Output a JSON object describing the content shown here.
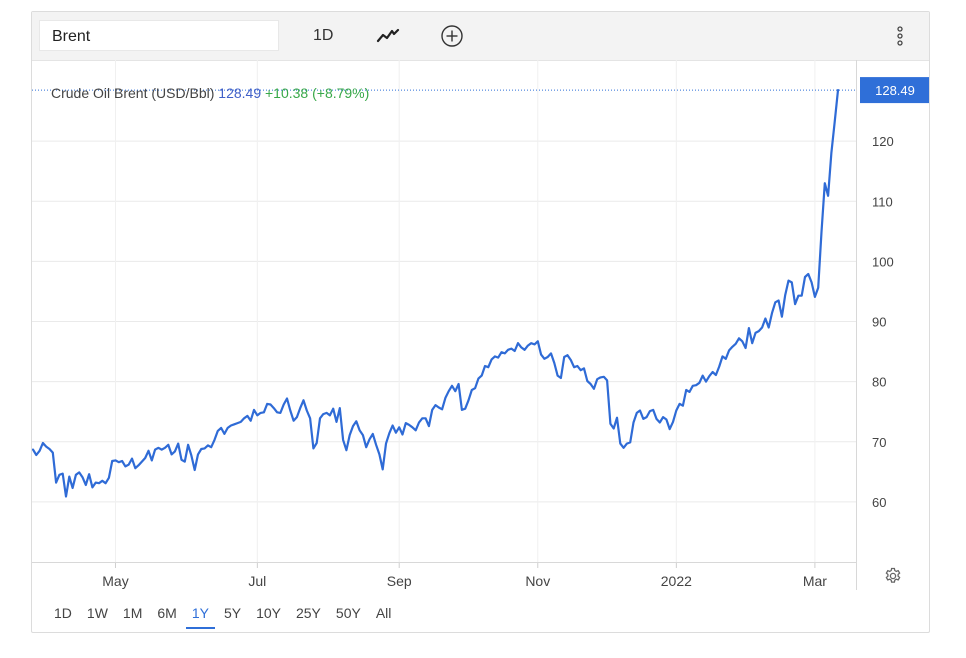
{
  "toolbar": {
    "search_value": "Brent",
    "interval_label": "1D",
    "chart_type_icon": "line-chart-icon",
    "add_icon": "plus-circle-icon",
    "more_icon": "more-vertical-icon"
  },
  "legend": {
    "name": "Crude Oil Brent (USD/Bbl)",
    "last_value": "128.49",
    "change": "+10.38 (+8.79%)"
  },
  "ranges": [
    {
      "label": "1D",
      "active": false
    },
    {
      "label": "1W",
      "active": false
    },
    {
      "label": "1M",
      "active": false
    },
    {
      "label": "6M",
      "active": false
    },
    {
      "label": "1Y",
      "active": true
    },
    {
      "label": "5Y",
      "active": false
    },
    {
      "label": "10Y",
      "active": false
    },
    {
      "label": "25Y",
      "active": false
    },
    {
      "label": "50Y",
      "active": false
    },
    {
      "label": "All",
      "active": false
    }
  ],
  "colors": {
    "line": "#2f6bd6",
    "accent": "#2f6fd8",
    "change_positive": "#38a849",
    "grid": "#eaeaea"
  },
  "chart_data": {
    "type": "line",
    "title": "Crude Oil Brent (USD/Bbl)",
    "xlabel": "",
    "ylabel": "USD/Bbl",
    "ylim": [
      50,
      131
    ],
    "yticks": [
      60,
      70,
      80,
      90,
      100,
      110,
      120
    ],
    "x_tick_labels": [
      {
        "label": "May",
        "index": 25
      },
      {
        "label": "Jul",
        "index": 68
      },
      {
        "label": "Sep",
        "index": 111
      },
      {
        "label": "Nov",
        "index": 153
      },
      {
        "label": "2022",
        "index": 195
      },
      {
        "label": "Mar",
        "index": 237
      }
    ],
    "last_price_label": "128.49",
    "last_price": 128.49,
    "series": [
      {
        "name": "Crude Oil Brent",
        "values": [
          68.7,
          67.8,
          68.5,
          69.8,
          69.2,
          68.8,
          68.2,
          63.2,
          64.5,
          64.7,
          60.9,
          64.2,
          62.3,
          64.5,
          64.9,
          64.1,
          62.8,
          64.6,
          62.4,
          63.2,
          63.1,
          63.5,
          63.1,
          64.0,
          66.8,
          66.9,
          66.6,
          66.8,
          65.9,
          66.2,
          67.2,
          65.6,
          66.1,
          66.7,
          67.3,
          68.5,
          66.9,
          68.7,
          69.0,
          68.7,
          69.0,
          69.5,
          67.9,
          68.4,
          69.7,
          67.0,
          66.7,
          69.5,
          67.7,
          65.3,
          67.9,
          68.8,
          68.9,
          69.4,
          69.1,
          70.3,
          71.8,
          72.3,
          71.3,
          72.3,
          72.7,
          72.9,
          73.1,
          73.3,
          73.9,
          74.3,
          73.5,
          75.3,
          74.4,
          74.8,
          74.9,
          76.3,
          76.2,
          75.6,
          74.9,
          74.8,
          76.2,
          77.2,
          75.2,
          73.5,
          74.1,
          75.6,
          76.9,
          75.2,
          73.9,
          68.9,
          69.8,
          73.9,
          74.6,
          74.8,
          74.4,
          75.5,
          73.3,
          75.6,
          70.3,
          68.6,
          71.1,
          72.6,
          73.4,
          71.9,
          71.1,
          69.1,
          70.4,
          71.3,
          69.5,
          67.9,
          65.4,
          69.7,
          71.4,
          72.7,
          71.5,
          72.4,
          71.2,
          73.1,
          72.8,
          72.4,
          71.9,
          73.2,
          73.9,
          73.9,
          72.6,
          75.3,
          76.1,
          75.7,
          75.4,
          77.3,
          78.4,
          79.3,
          78.4,
          79.6,
          75.3,
          75.5,
          76.9,
          78.6,
          78.9,
          80.5,
          81.0,
          82.6,
          82.4,
          83.7,
          84.2,
          84.0,
          84.9,
          84.7,
          85.3,
          85.5,
          85.1,
          86.4,
          85.7,
          85.3,
          86.0,
          86.4,
          86.2,
          86.7,
          84.5,
          83.8,
          84.1,
          84.7,
          83.1,
          81.0,
          80.6,
          84.1,
          84.4,
          83.6,
          82.4,
          82.6,
          81.9,
          82.2,
          80.1,
          79.6,
          78.8,
          80.4,
          80.7,
          80.8,
          80.2,
          73.0,
          72.2,
          74.0,
          69.7,
          69.0,
          69.7,
          69.9,
          73.2,
          74.8,
          75.2,
          73.8,
          74.1,
          75.1,
          75.3,
          73.8,
          73.2,
          74.1,
          73.7,
          72.1,
          73.3,
          75.2,
          76.3,
          76.0,
          78.6,
          78.3,
          79.3,
          79.4,
          79.8,
          81.0,
          80.0,
          80.9,
          81.6,
          81.1,
          82.5,
          84.2,
          83.8,
          85.2,
          85.8,
          86.3,
          87.2,
          86.7,
          85.6,
          88.9,
          86.4,
          88.1,
          88.4,
          89.0,
          90.5,
          89.0,
          91.4,
          93.2,
          93.5,
          90.8,
          94.4,
          96.8,
          96.5,
          92.9,
          94.3,
          94.3,
          97.4,
          97.9,
          96.5,
          94.1,
          95.6,
          104.9,
          113.0,
          110.9,
          118.1,
          123.2,
          128.49
        ]
      }
    ]
  }
}
